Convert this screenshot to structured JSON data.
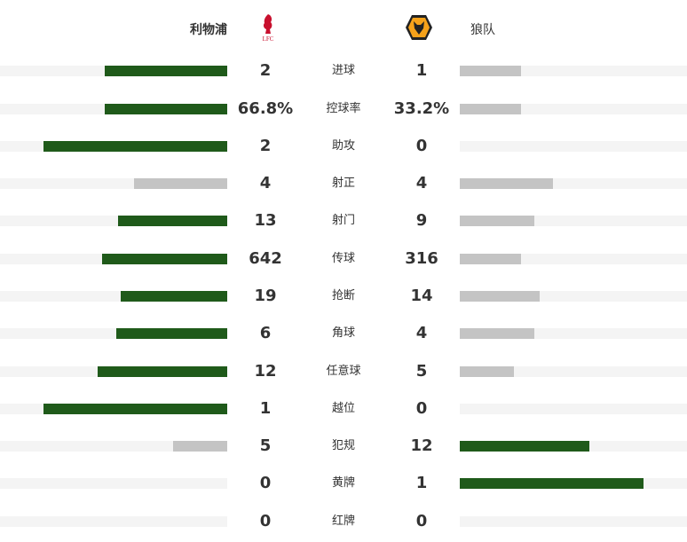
{
  "home": {
    "name": "利物浦",
    "logo_text": "LFC"
  },
  "away": {
    "name": "狼队"
  },
  "colors": {
    "win": "#1f5a1a",
    "lose": "#c4c4c4",
    "track": "#f4f4f4"
  },
  "stats": [
    {
      "label": "进球",
      "home": "2",
      "away": "1",
      "home_fill": 0.54,
      "away_fill": 0.27,
      "home_win": true,
      "away_win": false
    },
    {
      "label": "控球率",
      "home": "66.8%",
      "away": "33.2%",
      "home_fill": 0.54,
      "away_fill": 0.27,
      "home_win": true,
      "away_win": false
    },
    {
      "label": "助攻",
      "home": "2",
      "away": "0",
      "home_fill": 0.81,
      "away_fill": 0,
      "home_win": true,
      "away_win": false
    },
    {
      "label": "射正",
      "home": "4",
      "away": "4",
      "home_fill": 0.41,
      "away_fill": 0.41,
      "home_win": false,
      "away_win": false
    },
    {
      "label": "射门",
      "home": "13",
      "away": "9",
      "home_fill": 0.48,
      "away_fill": 0.33,
      "home_win": true,
      "away_win": false
    },
    {
      "label": "传球",
      "home": "642",
      "away": "316",
      "home_fill": 0.55,
      "away_fill": 0.27,
      "home_win": true,
      "away_win": false
    },
    {
      "label": "抢断",
      "home": "19",
      "away": "14",
      "home_fill": 0.47,
      "away_fill": 0.35,
      "home_win": true,
      "away_win": false
    },
    {
      "label": "角球",
      "home": "6",
      "away": "4",
      "home_fill": 0.49,
      "away_fill": 0.33,
      "home_win": true,
      "away_win": false
    },
    {
      "label": "任意球",
      "home": "12",
      "away": "5",
      "home_fill": 0.57,
      "away_fill": 0.24,
      "home_win": true,
      "away_win": false
    },
    {
      "label": "越位",
      "home": "1",
      "away": "0",
      "home_fill": 0.81,
      "away_fill": 0,
      "home_win": true,
      "away_win": false
    },
    {
      "label": "犯规",
      "home": "5",
      "away": "12",
      "home_fill": 0.24,
      "away_fill": 0.57,
      "home_win": false,
      "away_win": true
    },
    {
      "label": "黄牌",
      "home": "0",
      "away": "1",
      "home_fill": 0,
      "away_fill": 0.81,
      "home_win": false,
      "away_win": true
    },
    {
      "label": "红牌",
      "home": "0",
      "away": "0",
      "home_fill": 0,
      "away_fill": 0,
      "home_win": false,
      "away_win": false
    }
  ]
}
